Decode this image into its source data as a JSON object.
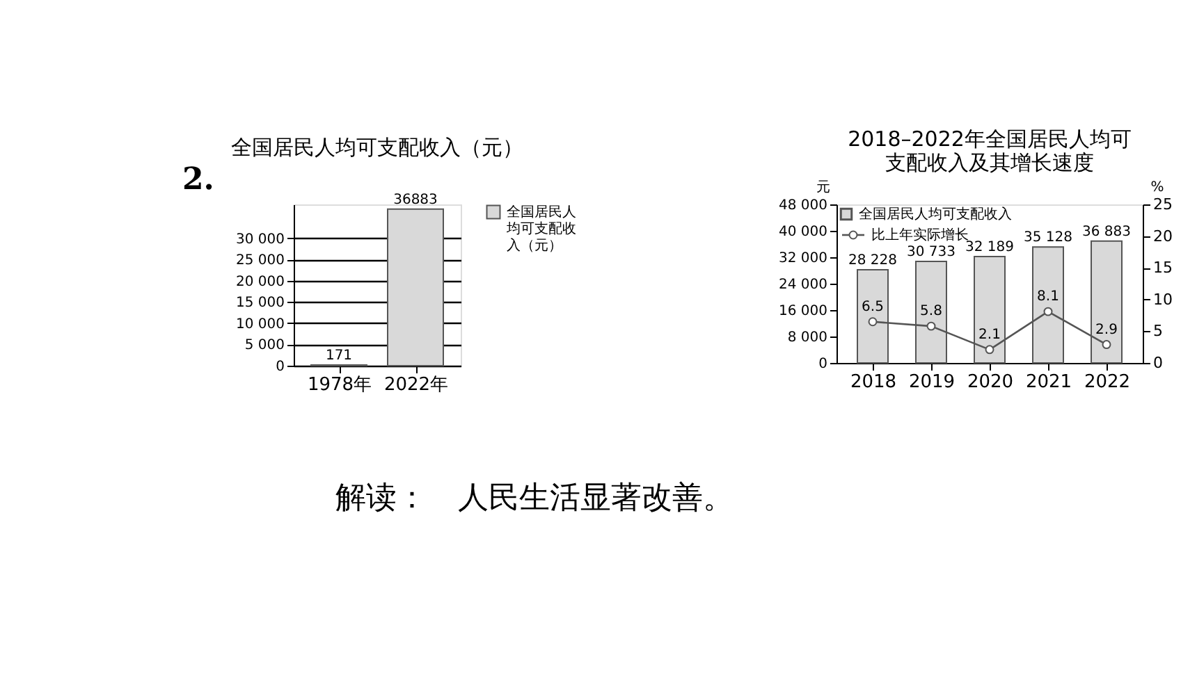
{
  "chart_data": [
    {
      "type": "bar",
      "title": "全国居民人均可支配收入（元）",
      "categories": [
        "1978年",
        "2022年"
      ],
      "series": [
        {
          "name": "全国居民人均可支配收入（元）",
          "color": "#d9d9d9",
          "values": [
            171,
            36883
          ]
        }
      ],
      "ylim": [
        0,
        38000
      ],
      "yticks": [
        0,
        {
          "value": 5000,
          "label": "5 000"
        },
        {
          "value": 10000,
          "label": "10 000"
        },
        {
          "value": 15000,
          "label": "15 000"
        },
        {
          "value": 20000,
          "label": "20 000"
        },
        {
          "value": 25000,
          "label": "25 000"
        },
        {
          "value": 30000,
          "label": "30 000"
        }
      ],
      "grid": "y",
      "legend": "right",
      "data_labels": true,
      "annotations": [
        "2.",
        "解读：　人民生活显著改善。"
      ]
    },
    {
      "type": "bar",
      "title": "2018–2022年全国居民人均可支配收入及其增长速度",
      "categories": [
        "2018",
        "2019",
        "2020",
        "2021",
        "2022"
      ],
      "series": [
        {
          "name": "全国居民人均可支配收入",
          "color": "#d9d9d9",
          "values": [
            28228,
            30733,
            32189,
            35128,
            36883
          ],
          "value_labels": [
            "28 228",
            "30 733",
            "32 189",
            "35 128",
            "36 883"
          ]
        },
        {
          "name": "比上年实际增长",
          "type": "line",
          "axis": "y2",
          "color": "#555555",
          "marker": "circle",
          "values": [
            6.5,
            5.8,
            2.1,
            8.1,
            2.9
          ],
          "value_labels": [
            "6.5",
            "5.8",
            "2.1",
            "8.1",
            "2.9"
          ]
        }
      ],
      "ylabel": "元",
      "y2label": "%",
      "ylim": [
        0,
        48000
      ],
      "yticks": [
        0,
        {
          "value": 8000,
          "label": "8 000"
        },
        {
          "value": 16000,
          "label": "16 000"
        },
        {
          "value": 24000,
          "label": "24 000"
        },
        {
          "value": 32000,
          "label": "32 000"
        },
        {
          "value": 40000,
          "label": "40 000"
        },
        {
          "value": 48000,
          "label": "48 000"
        }
      ],
      "y2lim": [
        0,
        25
      ],
      "y2ticks": [
        0,
        5,
        10,
        15,
        20,
        25
      ],
      "grid": false,
      "legend": "top left"
    }
  ]
}
